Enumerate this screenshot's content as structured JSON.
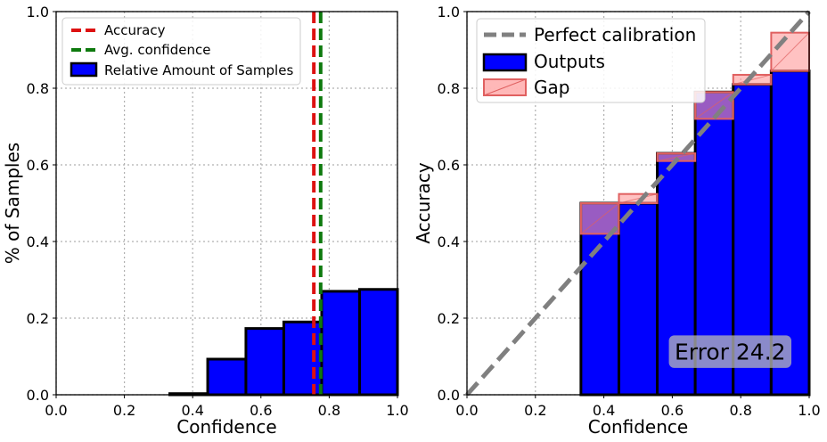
{
  "chart_data": [
    {
      "type": "bar",
      "xlabel": "Confidence",
      "ylabel": "% of Samples",
      "xlim": [
        0,
        1
      ],
      "ylim": [
        0,
        1
      ],
      "xticks": [
        "0.0",
        "0.2",
        "0.4",
        "0.6",
        "0.8",
        "1.0"
      ],
      "yticks": [
        "0.0",
        "0.2",
        "0.4",
        "0.6",
        "0.8",
        "1.0"
      ],
      "grid": true,
      "legend_position": "top-left",
      "bin_edges": [
        0.0,
        0.111,
        0.222,
        0.333,
        0.444,
        0.556,
        0.667,
        0.778,
        0.889,
        1.0
      ],
      "series": [
        {
          "name": "Relative Amount of Samples",
          "values": [
            0.0,
            0.0,
            0.0,
            0.003,
            0.093,
            0.173,
            0.19,
            0.27,
            0.275
          ]
        }
      ],
      "vlines": [
        {
          "name": "Accuracy",
          "x": 0.755,
          "color": "#dd1111"
        },
        {
          "name": "Avg. confidence",
          "x": 0.775,
          "color": "#0e7a0e"
        }
      ],
      "bar_color": "#0000ff"
    },
    {
      "type": "bar",
      "xlabel": "Confidence",
      "ylabel": "Accuracy",
      "xlim": [
        0,
        1
      ],
      "ylim": [
        0,
        1
      ],
      "xticks": [
        "0.0",
        "0.2",
        "0.4",
        "0.6",
        "0.8",
        "1.0"
      ],
      "yticks": [
        "0.0",
        "0.2",
        "0.4",
        "0.6",
        "0.8",
        "1.0"
      ],
      "grid": true,
      "legend_position": "top-left",
      "bin_edges": [
        0.0,
        0.111,
        0.222,
        0.333,
        0.444,
        0.556,
        0.667,
        0.778,
        0.889,
        1.0
      ],
      "series": [
        {
          "name": "Outputs",
          "values": [
            0.0,
            0.0,
            0.0,
            0.5,
            0.5,
            0.63,
            0.79,
            0.81,
            0.845
          ]
        },
        {
          "name": "Gap",
          "expected": [
            0.0,
            0.0,
            0.0,
            0.42,
            0.524,
            0.61,
            0.72,
            0.835,
            0.945
          ]
        }
      ],
      "reference_line": {
        "name": "Perfect calibration",
        "from": [
          0,
          0
        ],
        "to": [
          1,
          1
        ]
      },
      "annotation": "Error 24.2",
      "bar_color": "#0000ff",
      "gap_color": "#ff9a9a"
    }
  ]
}
